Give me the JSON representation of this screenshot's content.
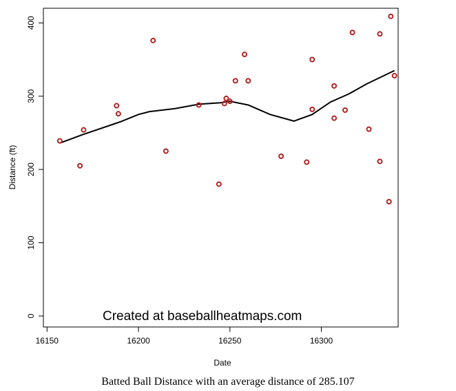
{
  "chart_data": {
    "type": "scatter",
    "xlabel": "Date",
    "ylabel": "Distance (ft)",
    "xlim": [
      16148,
      16342
    ],
    "ylim": [
      -15,
      420
    ],
    "x_ticks": [
      16150,
      16200,
      16250,
      16300
    ],
    "y_ticks": [
      0,
      100,
      200,
      300,
      400
    ],
    "grid": false,
    "points": [
      {
        "x": 16157,
        "y": 239
      },
      {
        "x": 16168,
        "y": 205
      },
      {
        "x": 16170,
        "y": 254
      },
      {
        "x": 16188,
        "y": 287
      },
      {
        "x": 16189,
        "y": 276
      },
      {
        "x": 16208,
        "y": 376
      },
      {
        "x": 16215,
        "y": 225
      },
      {
        "x": 16233,
        "y": 288
      },
      {
        "x": 16244,
        "y": 180
      },
      {
        "x": 16247,
        "y": 290
      },
      {
        "x": 16248,
        "y": 297
      },
      {
        "x": 16250,
        "y": 293
      },
      {
        "x": 16253,
        "y": 321
      },
      {
        "x": 16258,
        "y": 357
      },
      {
        "x": 16260,
        "y": 321
      },
      {
        "x": 16278,
        "y": 218
      },
      {
        "x": 16292,
        "y": 210
      },
      {
        "x": 16295,
        "y": 350
      },
      {
        "x": 16295,
        "y": 282
      },
      {
        "x": 16307,
        "y": 314
      },
      {
        "x": 16307,
        "y": 270
      },
      {
        "x": 16313,
        "y": 281
      },
      {
        "x": 16317,
        "y": 387
      },
      {
        "x": 16326,
        "y": 255
      },
      {
        "x": 16332,
        "y": 385
      },
      {
        "x": 16332,
        "y": 211
      },
      {
        "x": 16337,
        "y": 156
      },
      {
        "x": 16338,
        "y": 409
      },
      {
        "x": 16340,
        "y": 328
      }
    ],
    "smooth_line": {
      "x": [
        16157,
        16170,
        16190,
        16200,
        16206,
        16220,
        16233,
        16245,
        16250,
        16260,
        16272,
        16285,
        16295,
        16305,
        16315,
        16325,
        16340
      ],
      "y": [
        236,
        248,
        265,
        275,
        279,
        283,
        289,
        291,
        293,
        288,
        275,
        266,
        275,
        292,
        303,
        317,
        335
      ]
    },
    "colors": {
      "point": "#b22222",
      "line": "#000000"
    },
    "watermark": "Created at baseballheatmaps.com"
  },
  "caption": "Batted Ball Distance with an average distance of 285.107"
}
